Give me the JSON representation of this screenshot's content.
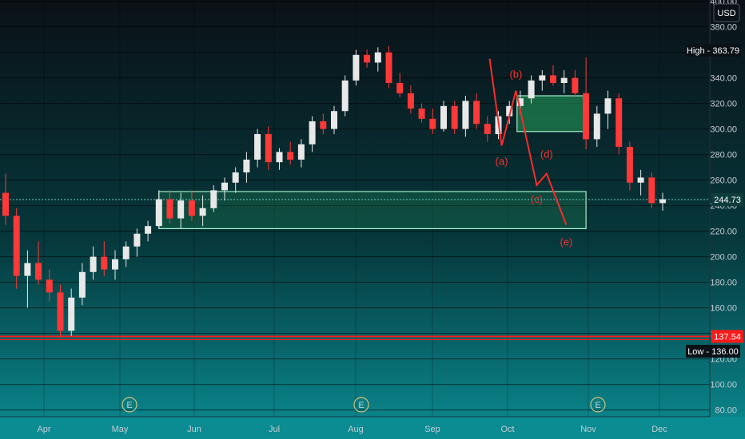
{
  "colors": {
    "bg_top": "#0a1117",
    "bg_mid": "#06383c",
    "bg_bottom": "#0a8c92",
    "up": "#e8e8e8",
    "down": "#ff3838",
    "zone_fill": "#27a35c",
    "zone_stroke": "#9ff0c8",
    "wave_line": "#ff2a2a",
    "support_line": "#ff1a1a",
    "grid": "#000000"
  },
  "chart_data": {
    "type": "candlestick",
    "currency_label": "USD",
    "y_axis": {
      "min": 77,
      "max": 400,
      "ticks": [
        80,
        100,
        120,
        140,
        160,
        180,
        200,
        220,
        240,
        260,
        280,
        300,
        320,
        340,
        360,
        380,
        400
      ]
    },
    "x_axis": {
      "labels": [
        "Apr",
        "May",
        "Jun",
        "Jul",
        "Aug",
        "Sep",
        "Oct",
        "Nov",
        "Dec"
      ]
    },
    "price_tags": {
      "high": {
        "label": "High",
        "value": "363.79"
      },
      "current": {
        "value": "244.73"
      },
      "support": {
        "value": "137.54"
      },
      "low": {
        "label": "Low",
        "value": "136.00"
      }
    },
    "levels": {
      "current": 244.73,
      "support": 137.54
    },
    "zones": [
      {
        "name": "demand-zone",
        "from_week": 14,
        "to_week": 53,
        "low": 222,
        "high": 251
      },
      {
        "name": "supply-zone",
        "from_week": 46.7,
        "to_week": 53,
        "low": 298,
        "high": 326
      }
    ],
    "wave_labels": [
      "(a)",
      "(b)",
      "(c)",
      "(d)",
      "(e)"
    ],
    "wave_points": [
      {
        "week": 44.2,
        "value": 355
      },
      {
        "week": 45.3,
        "value": 287
      },
      {
        "week": 46.6,
        "value": 330
      },
      {
        "week": 48.5,
        "value": 256
      },
      {
        "week": 49.4,
        "value": 265
      },
      {
        "week": 51.2,
        "value": 225
      }
    ],
    "event_markers": [
      "E",
      "E",
      "E"
    ],
    "candles": [
      {
        "week": 0,
        "o": 250,
        "h": 265,
        "l": 225,
        "c": 232
      },
      {
        "week": 1,
        "o": 232,
        "h": 238,
        "l": 175,
        "c": 185
      },
      {
        "week": 2,
        "o": 185,
        "h": 205,
        "l": 160,
        "c": 195
      },
      {
        "week": 3,
        "o": 195,
        "h": 212,
        "l": 178,
        "c": 182
      },
      {
        "week": 4,
        "o": 182,
        "h": 190,
        "l": 165,
        "c": 172
      },
      {
        "week": 5,
        "o": 172,
        "h": 178,
        "l": 137,
        "c": 142
      },
      {
        "week": 6,
        "o": 142,
        "h": 175,
        "l": 138,
        "c": 168
      },
      {
        "week": 7,
        "o": 168,
        "h": 195,
        "l": 162,
        "c": 188
      },
      {
        "week": 8,
        "o": 188,
        "h": 208,
        "l": 182,
        "c": 200
      },
      {
        "week": 9,
        "o": 200,
        "h": 212,
        "l": 185,
        "c": 190
      },
      {
        "week": 10,
        "o": 190,
        "h": 205,
        "l": 182,
        "c": 198
      },
      {
        "week": 11,
        "o": 198,
        "h": 212,
        "l": 192,
        "c": 208
      },
      {
        "week": 12,
        "o": 208,
        "h": 222,
        "l": 200,
        "c": 218
      },
      {
        "week": 13,
        "o": 218,
        "h": 228,
        "l": 212,
        "c": 224
      },
      {
        "week": 14,
        "o": 224,
        "h": 252,
        "l": 222,
        "c": 245
      },
      {
        "week": 15,
        "o": 245,
        "h": 252,
        "l": 226,
        "c": 230
      },
      {
        "week": 16,
        "o": 230,
        "h": 250,
        "l": 222,
        "c": 244
      },
      {
        "week": 17,
        "o": 244,
        "h": 252,
        "l": 228,
        "c": 232
      },
      {
        "week": 18,
        "o": 232,
        "h": 248,
        "l": 224,
        "c": 238
      },
      {
        "week": 19,
        "o": 238,
        "h": 256,
        "l": 235,
        "c": 252
      },
      {
        "week": 20,
        "o": 252,
        "h": 262,
        "l": 244,
        "c": 258
      },
      {
        "week": 21,
        "o": 258,
        "h": 270,
        "l": 250,
        "c": 266
      },
      {
        "week": 22,
        "o": 266,
        "h": 282,
        "l": 258,
        "c": 276
      },
      {
        "week": 23,
        "o": 276,
        "h": 300,
        "l": 270,
        "c": 296
      },
      {
        "week": 24,
        "o": 296,
        "h": 302,
        "l": 268,
        "c": 274
      },
      {
        "week": 25,
        "o": 274,
        "h": 285,
        "l": 268,
        "c": 282
      },
      {
        "week": 26,
        "o": 282,
        "h": 290,
        "l": 272,
        "c": 276
      },
      {
        "week": 27,
        "o": 276,
        "h": 292,
        "l": 270,
        "c": 288
      },
      {
        "week": 28,
        "o": 288,
        "h": 310,
        "l": 282,
        "c": 306
      },
      {
        "week": 29,
        "o": 306,
        "h": 312,
        "l": 296,
        "c": 300
      },
      {
        "week": 30,
        "o": 300,
        "h": 318,
        "l": 296,
        "c": 314
      },
      {
        "week": 31,
        "o": 314,
        "h": 342,
        "l": 310,
        "c": 338
      },
      {
        "week": 32,
        "o": 338,
        "h": 362,
        "l": 334,
        "c": 358
      },
      {
        "week": 33,
        "o": 358,
        "h": 362,
        "l": 348,
        "c": 352
      },
      {
        "week": 34,
        "o": 352,
        "h": 364,
        "l": 345,
        "c": 360
      },
      {
        "week": 35,
        "o": 360,
        "h": 365,
        "l": 332,
        "c": 336
      },
      {
        "week": 36,
        "o": 336,
        "h": 344,
        "l": 325,
        "c": 328
      },
      {
        "week": 37,
        "o": 328,
        "h": 334,
        "l": 312,
        "c": 316
      },
      {
        "week": 38,
        "o": 316,
        "h": 320,
        "l": 305,
        "c": 308
      },
      {
        "week": 39,
        "o": 308,
        "h": 316,
        "l": 296,
        "c": 300
      },
      {
        "week": 40,
        "o": 300,
        "h": 322,
        "l": 298,
        "c": 318
      },
      {
        "week": 41,
        "o": 318,
        "h": 322,
        "l": 296,
        "c": 300
      },
      {
        "week": 42,
        "o": 300,
        "h": 326,
        "l": 294,
        "c": 322
      },
      {
        "week": 43,
        "o": 322,
        "h": 328,
        "l": 300,
        "c": 304
      },
      {
        "week": 44,
        "o": 304,
        "h": 310,
        "l": 290,
        "c": 296
      },
      {
        "week": 45,
        "o": 296,
        "h": 314,
        "l": 292,
        "c": 310
      },
      {
        "week": 46,
        "o": 310,
        "h": 322,
        "l": 304,
        "c": 318
      },
      {
        "week": 47,
        "o": 318,
        "h": 330,
        "l": 312,
        "c": 324
      },
      {
        "week": 48,
        "o": 324,
        "h": 342,
        "l": 320,
        "c": 338
      },
      {
        "week": 49,
        "o": 338,
        "h": 346,
        "l": 330,
        "c": 342
      },
      {
        "week": 50,
        "o": 342,
        "h": 350,
        "l": 334,
        "c": 336
      },
      {
        "week": 51,
        "o": 336,
        "h": 346,
        "l": 328,
        "c": 340
      },
      {
        "week": 52,
        "o": 340,
        "h": 346,
        "l": 325,
        "c": 328
      },
      {
        "week": 53,
        "o": 328,
        "h": 356,
        "l": 284,
        "c": 292
      },
      {
        "week": 54,
        "o": 292,
        "h": 318,
        "l": 286,
        "c": 312
      },
      {
        "week": 55,
        "o": 312,
        "h": 330,
        "l": 300,
        "c": 324
      },
      {
        "week": 56,
        "o": 324,
        "h": 328,
        "l": 280,
        "c": 286
      },
      {
        "week": 57,
        "o": 286,
        "h": 290,
        "l": 252,
        "c": 258
      },
      {
        "week": 58,
        "o": 258,
        "h": 268,
        "l": 248,
        "c": 262
      },
      {
        "week": 59,
        "o": 262,
        "h": 266,
        "l": 238,
        "c": 242
      },
      {
        "week": 60,
        "o": 242,
        "h": 250,
        "l": 236,
        "c": 245
      }
    ]
  }
}
